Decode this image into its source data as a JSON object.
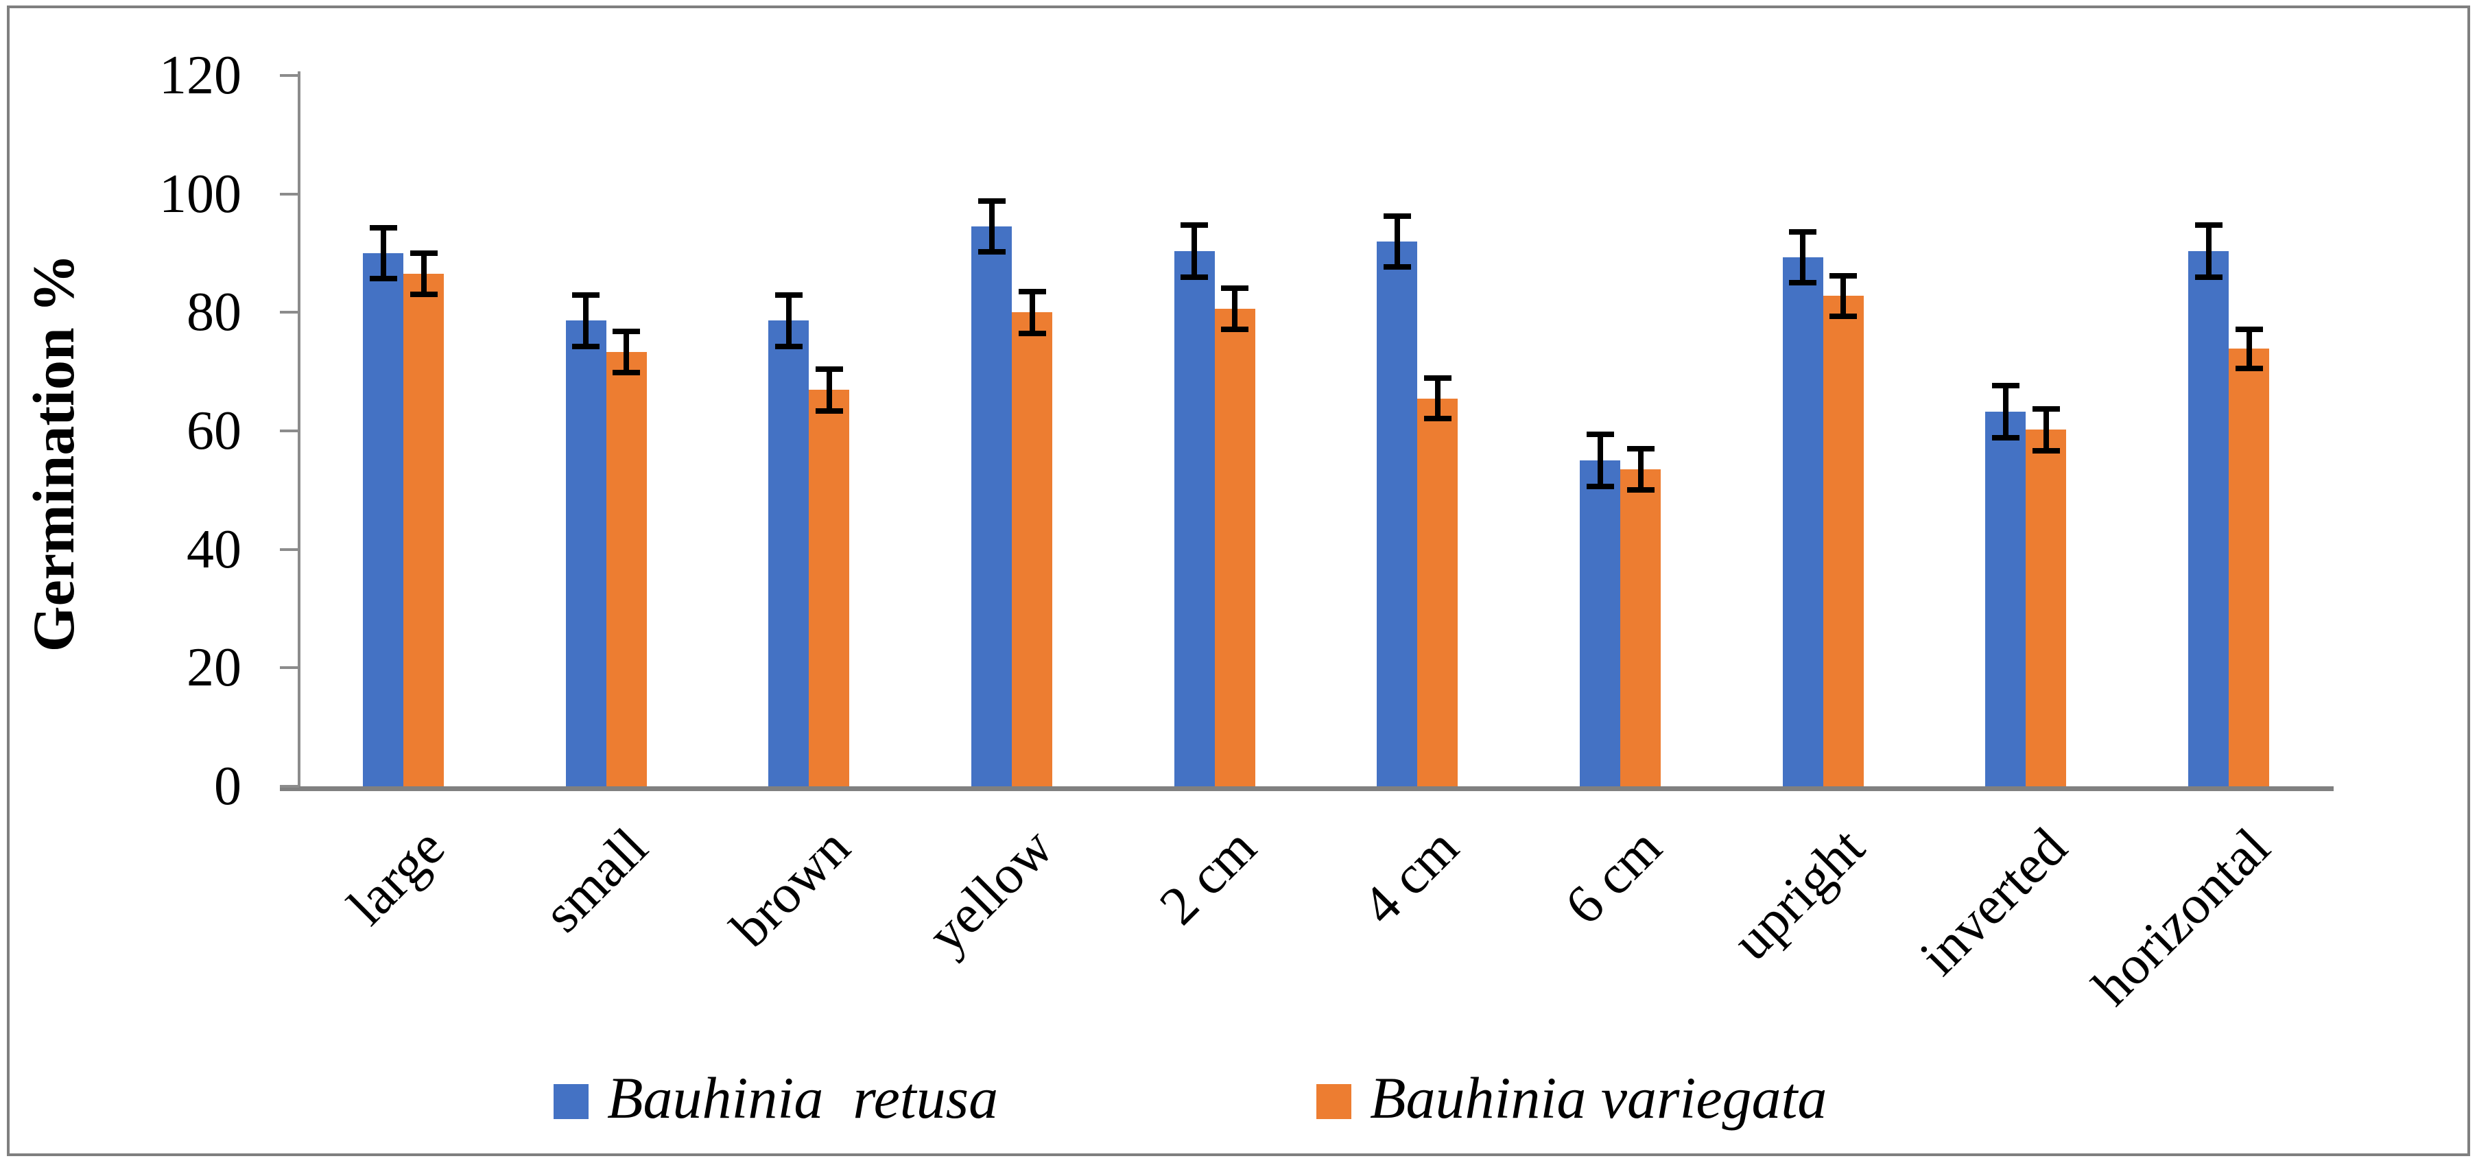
{
  "chart_data": {
    "type": "bar",
    "title": "",
    "xlabel": "",
    "ylabel": "Germination %",
    "ylim": [
      0,
      120
    ],
    "yticks": [
      0,
      20,
      40,
      60,
      80,
      100,
      120
    ],
    "grid": false,
    "error_bars": true,
    "legend_position": "bottom",
    "categories": [
      "large",
      "small",
      "brown",
      "yellow",
      "2 cm",
      "4 cm",
      "6 cm",
      "upright",
      "inverted",
      "horizontal"
    ],
    "series": [
      {
        "name": "Bauhinia  retusa",
        "color": "#4472C4",
        "values": [
          90.0,
          78.6,
          78.6,
          94.5,
          90.4,
          92.0,
          55.0,
          89.3,
          63.3,
          90.4
        ],
        "errors": [
          4.3,
          4.3,
          4.3,
          4.3,
          4.4,
          4.3,
          4.4,
          4.3,
          4.4,
          4.4
        ]
      },
      {
        "name": "Bauhinia variegata",
        "color": "#ED7D31",
        "values": [
          86.5,
          73.3,
          66.9,
          80.0,
          80.6,
          65.5,
          53.5,
          82.8,
          60.2,
          73.9
        ],
        "errors": [
          3.5,
          3.5,
          3.5,
          3.5,
          3.5,
          3.4,
          3.5,
          3.4,
          3.5,
          3.3
        ]
      }
    ],
    "style": {
      "axis_color": "#8c8c8c",
      "baseline_color": "#808080",
      "error_bar_color": "#000000",
      "frame_border_color": "#7f7f7f",
      "background": "#ffffff"
    }
  }
}
